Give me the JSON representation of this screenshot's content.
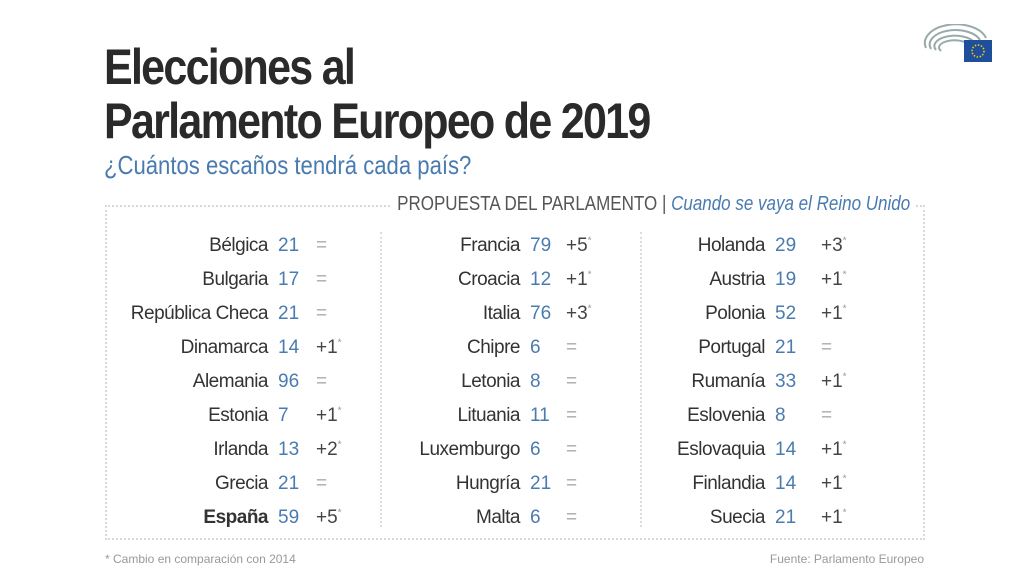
{
  "title_line1": "Elecciones al",
  "title_line2": "Parlamento Europeo de 2019",
  "subtitle": "¿Cuántos escaños tendrá cada país?",
  "header": {
    "proposal": "PROPUESTA DEL PARLAMENTO",
    "separator": "|",
    "brexit": "Cuando se vaya el Reino Unido"
  },
  "columns": [
    [
      {
        "name": "Bélgica",
        "seats": "21",
        "change": "="
      },
      {
        "name": "Bulgaria",
        "seats": "17",
        "change": "="
      },
      {
        "name": "República Checa",
        "seats": "21",
        "change": "="
      },
      {
        "name": "Dinamarca",
        "seats": "14",
        "change": "+1"
      },
      {
        "name": "Alemania",
        "seats": "96",
        "change": "="
      },
      {
        "name": "Estonia",
        "seats": "7",
        "change": "+1"
      },
      {
        "name": "Irlanda",
        "seats": "13",
        "change": "+2"
      },
      {
        "name": "Grecia",
        "seats": "21",
        "change": "="
      },
      {
        "name": "España",
        "seats": "59",
        "change": "+5",
        "bold": true
      }
    ],
    [
      {
        "name": "Francia",
        "seats": "79",
        "change": "+5"
      },
      {
        "name": "Croacia",
        "seats": "12",
        "change": "+1"
      },
      {
        "name": "Italia",
        "seats": "76",
        "change": "+3"
      },
      {
        "name": "Chipre",
        "seats": "6",
        "change": "="
      },
      {
        "name": "Letonia",
        "seats": "8",
        "change": "="
      },
      {
        "name": "Lituania",
        "seats": "11",
        "change": "="
      },
      {
        "name": "Luxemburgo",
        "seats": "6",
        "change": "="
      },
      {
        "name": "Hungría",
        "seats": "21",
        "change": "="
      },
      {
        "name": "Malta",
        "seats": "6",
        "change": "="
      }
    ],
    [
      {
        "name": "Holanda",
        "seats": "29",
        "change": "+3"
      },
      {
        "name": "Austria",
        "seats": "19",
        "change": "+1"
      },
      {
        "name": "Polonia",
        "seats": "52",
        "change": "+1"
      },
      {
        "name": "Portugal",
        "seats": "21",
        "change": "="
      },
      {
        "name": "Rumanía",
        "seats": "33",
        "change": "+1"
      },
      {
        "name": "Eslovenia",
        "seats": "8",
        "change": "="
      },
      {
        "name": "Eslovaquia",
        "seats": "14",
        "change": "+1"
      },
      {
        "name": "Finlandia",
        "seats": "14",
        "change": "+1"
      },
      {
        "name": "Suecia",
        "seats": "21",
        "change": "+1"
      }
    ]
  ],
  "footnote_marker": "*",
  "footnote": "* Cambio en comparación con 2014",
  "source": "Fuente: Parlamento Europeo",
  "logo": "european-parliament-logo",
  "colors": {
    "accent": "#4a7bb0",
    "text": "#2a2a2a",
    "flag": "#1f4e9c",
    "stars": "#f5d300"
  }
}
